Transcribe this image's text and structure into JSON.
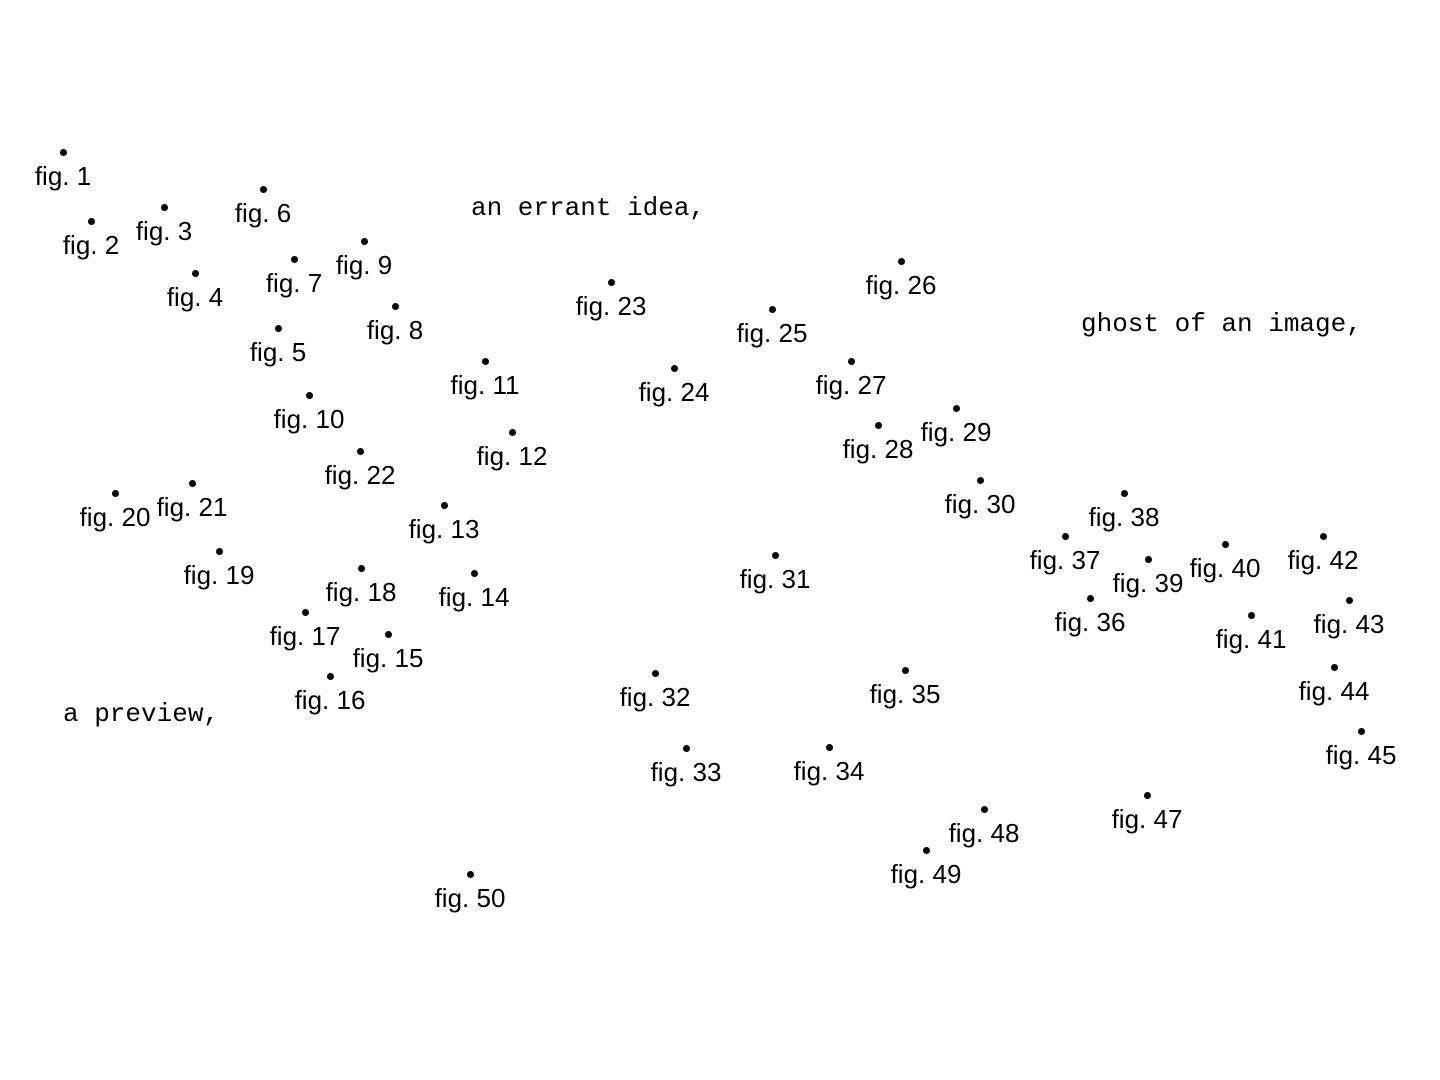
{
  "phrases": {
    "errant_idea": "an errant idea,",
    "ghost_image": "ghost of an image,",
    "preview": "a preview,"
  },
  "figures": [
    {
      "label": "fig. 1"
    },
    {
      "label": "fig. 2"
    },
    {
      "label": "fig. 3"
    },
    {
      "label": "fig. 4"
    },
    {
      "label": "fig. 5"
    },
    {
      "label": "fig. 6"
    },
    {
      "label": "fig. 7"
    },
    {
      "label": "fig. 8"
    },
    {
      "label": "fig. 9"
    },
    {
      "label": "fig. 10"
    },
    {
      "label": "fig. 11"
    },
    {
      "label": "fig. 12"
    },
    {
      "label": "fig. 13"
    },
    {
      "label": "fig. 14"
    },
    {
      "label": "fig. 15"
    },
    {
      "label": "fig. 16"
    },
    {
      "label": "fig. 17"
    },
    {
      "label": "fig. 18"
    },
    {
      "label": "fig. 19"
    },
    {
      "label": "fig. 20"
    },
    {
      "label": "fig. 21"
    },
    {
      "label": "fig. 22"
    },
    {
      "label": "fig. 23"
    },
    {
      "label": "fig. 24"
    },
    {
      "label": "fig. 25"
    },
    {
      "label": "fig. 26"
    },
    {
      "label": "fig. 27"
    },
    {
      "label": "fig. 28"
    },
    {
      "label": "fig. 29"
    },
    {
      "label": "fig. 30"
    },
    {
      "label": "fig. 31"
    },
    {
      "label": "fig. 32"
    },
    {
      "label": "fig. 33"
    },
    {
      "label": "fig. 34"
    },
    {
      "label": "fig. 35"
    },
    {
      "label": "fig. 36"
    },
    {
      "label": "fig. 37"
    },
    {
      "label": "fig. 38"
    },
    {
      "label": "fig. 39"
    },
    {
      "label": "fig. 40"
    },
    {
      "label": "fig. 41"
    },
    {
      "label": "fig. 42"
    },
    {
      "label": "fig. 43"
    },
    {
      "label": "fig. 44"
    },
    {
      "label": "fig. 45"
    },
    {
      "label": "fig. 47"
    },
    {
      "label": "fig. 48"
    },
    {
      "label": "fig. 49"
    },
    {
      "label": "fig. 50"
    }
  ]
}
